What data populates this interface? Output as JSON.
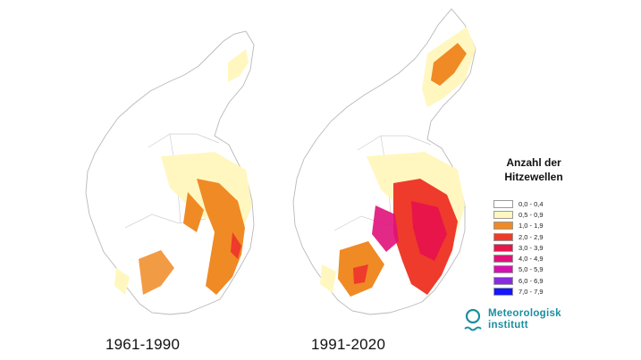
{
  "maps": [
    {
      "period": "1961-1990"
    },
    {
      "period": "1991-2020"
    }
  ],
  "legend": {
    "title": "Anzahl der\nHitzewellen",
    "items": [
      {
        "label": "0,0 - 0,4",
        "color": "#ffffff"
      },
      {
        "label": "0,5 - 0,9",
        "color": "#fff7bf"
      },
      {
        "label": "1,0 - 1,9",
        "color": "#f08a24"
      },
      {
        "label": "2,0 - 2,9",
        "color": "#ee3b2b"
      },
      {
        "label": "3,0 - 3,9",
        "color": "#e8154a"
      },
      {
        "label": "4,0 - 4,9",
        "color": "#e0127a"
      },
      {
        "label": "5,0 - 5,9",
        "color": "#d611b0"
      },
      {
        "label": "6,0 - 6,9",
        "color": "#8a2be2"
      },
      {
        "label": "7,0 - 7,9",
        "color": "#1515ff"
      }
    ]
  },
  "brand": {
    "name": "Meteorologisk\ninstitutt",
    "color": "#1b8fa0"
  }
}
